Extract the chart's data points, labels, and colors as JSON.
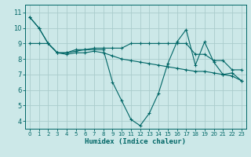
{
  "xlabel": "Humidex (Indice chaleur)",
  "background_color": "#cce8e8",
  "grid_color": "#aacccc",
  "line_color": "#006666",
  "xlim": [
    -0.5,
    23.5
  ],
  "ylim": [
    3.5,
    11.5
  ],
  "xticks": [
    0,
    1,
    2,
    3,
    4,
    5,
    6,
    7,
    8,
    9,
    10,
    11,
    12,
    13,
    14,
    15,
    16,
    17,
    18,
    19,
    20,
    21,
    22,
    23
  ],
  "yticks": [
    4,
    5,
    6,
    7,
    8,
    9,
    10,
    11
  ],
  "series1_x": [
    0,
    1,
    2,
    3,
    4,
    5,
    6,
    7,
    8,
    9,
    10,
    11,
    12,
    13,
    14,
    15,
    16,
    17,
    18,
    19,
    20,
    21,
    22,
    23
  ],
  "series1_y": [
    10.7,
    10.0,
    9.0,
    8.4,
    8.4,
    8.5,
    8.6,
    8.6,
    8.6,
    6.5,
    5.3,
    4.1,
    3.7,
    4.5,
    5.8,
    7.7,
    9.1,
    9.9,
    7.6,
    9.1,
    7.8,
    7.0,
    7.1,
    6.6
  ],
  "series2_x": [
    0,
    1,
    2,
    3,
    4,
    5,
    6,
    7,
    8,
    9,
    10,
    11,
    12,
    13,
    14,
    15,
    16,
    17,
    18,
    19,
    20,
    21,
    22,
    23
  ],
  "series2_y": [
    9.0,
    9.0,
    9.0,
    8.4,
    8.4,
    8.6,
    8.6,
    8.7,
    8.7,
    8.7,
    8.7,
    9.0,
    9.0,
    9.0,
    9.0,
    9.0,
    9.0,
    9.0,
    8.3,
    8.3,
    7.9,
    7.9,
    7.3,
    7.3
  ],
  "series3_x": [
    0,
    1,
    2,
    3,
    4,
    5,
    6,
    7,
    8,
    9,
    10,
    11,
    12,
    13,
    14,
    15,
    16,
    17,
    18,
    19,
    20,
    21,
    22,
    23
  ],
  "series3_y": [
    10.7,
    10.0,
    9.0,
    8.4,
    8.3,
    8.4,
    8.4,
    8.5,
    8.4,
    8.2,
    8.0,
    7.9,
    7.8,
    7.7,
    7.6,
    7.5,
    7.4,
    7.3,
    7.2,
    7.2,
    7.1,
    7.0,
    6.9,
    6.6
  ]
}
